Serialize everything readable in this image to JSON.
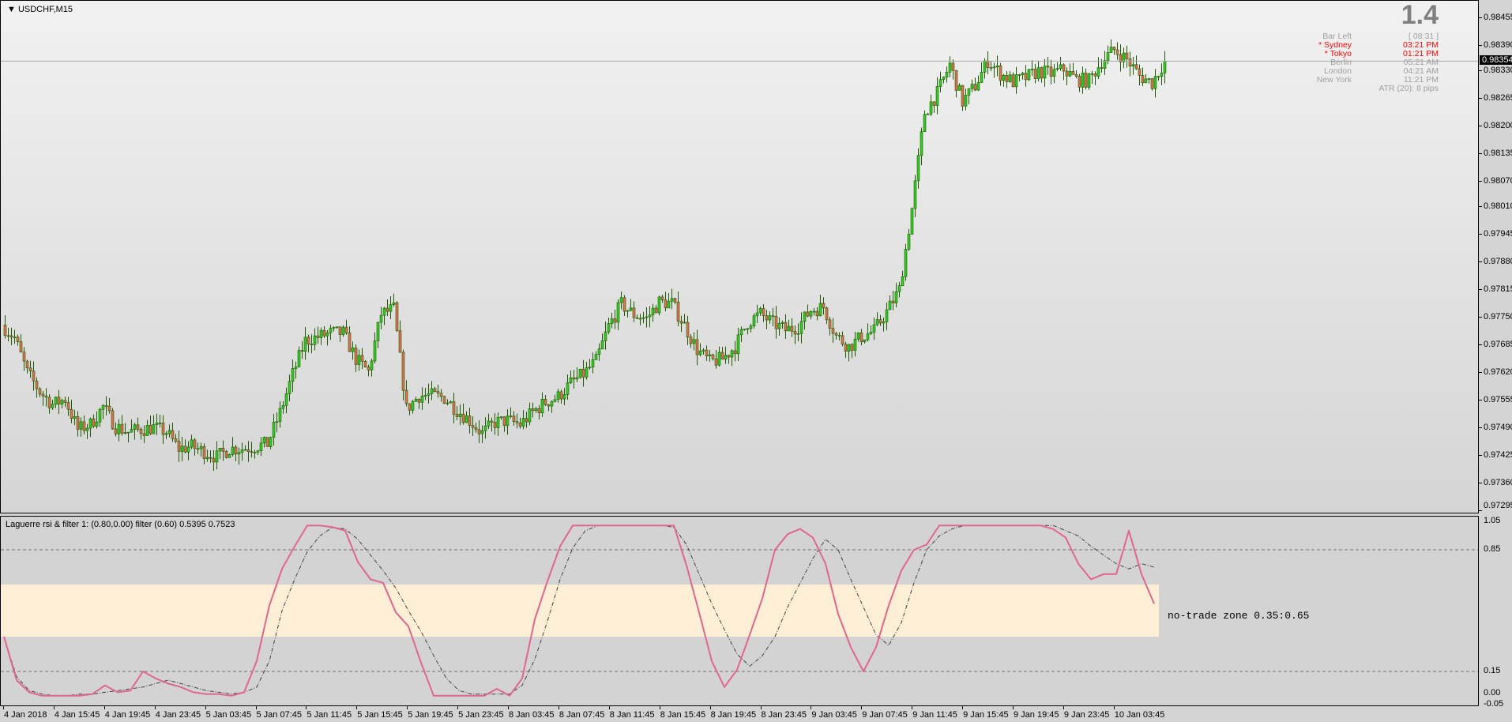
{
  "header": {
    "symbol_label": "USDCHF,M15"
  },
  "info_panel": {
    "spread": "1.4",
    "rows": [
      {
        "label": "Bar Left",
        "value": "[ 08:31 ]",
        "color": "#a0a0a0"
      },
      {
        "label": "* Sydney",
        "value": "03:21 PM",
        "color": "#ff0000"
      },
      {
        "label": "* Tokyo",
        "value": "01:21 PM",
        "color": "#ff0000"
      },
      {
        "label": "Berlin",
        "value": "05:21 AM",
        "color": "#a0a0a0"
      },
      {
        "label": "London",
        "value": "04:21 AM",
        "color": "#a0a0a0"
      },
      {
        "label": "New York",
        "value": "11:21 PM",
        "color": "#a0a0a0"
      }
    ],
    "atr": "ATR (20): 8 pips"
  },
  "indicator": {
    "title": "Laguerre rsi & filter 1: (0.80,0.00) filter (0.60) 0.5395 0.7523",
    "zone_label": "no-trade zone 0.35:0.65",
    "zone_color": "#fdefd6",
    "rsi_color": "#e0668e",
    "filter_color": "#404040"
  },
  "chart_data": [
    {
      "type": "candlestick",
      "symbol": "USDCHF",
      "timeframe": "M15",
      "ylim": [
        0.97295,
        0.98455
      ],
      "y_ticks": [
        "0.98455",
        "0.98390",
        "0.98330",
        "0.98265",
        "0.98200",
        "0.98135",
        "0.98070",
        "0.98010",
        "0.97945",
        "0.97880",
        "0.97815",
        "0.97750",
        "0.97685",
        "0.97620",
        "0.97555",
        "0.97490",
        "0.97425",
        "0.97360",
        "0.97295"
      ],
      "current_price": "0.98354",
      "x_ticks": [
        "4 Jan 2018",
        "4 Jan 15:45",
        "4 Jan 19:45",
        "4 Jan 23:45",
        "5 Jan 03:45",
        "5 Jan 07:45",
        "5 Jan 11:45",
        "5 Jan 15:45",
        "5 Jan 19:45",
        "5 Jan 23:45",
        "8 Jan 03:45",
        "8 Jan 07:45",
        "8 Jan 11:45",
        "8 Jan 15:45",
        "8 Jan 19:45",
        "8 Jan 23:45",
        "9 Jan 03:45",
        "9 Jan 07:45",
        "9 Jan 11:45",
        "9 Jan 15:45",
        "9 Jan 19:45",
        "9 Jan 23:45",
        "10 Jan 03:45"
      ],
      "hourly_close": [
        0.97703,
        0.97621,
        0.97576,
        0.97546,
        0.97558,
        0.97487,
        0.97499,
        0.9754,
        0.97494,
        0.97481,
        0.97487,
        0.97492,
        0.97481,
        0.97442,
        0.97447,
        0.97435,
        0.97422,
        0.97442,
        0.97442,
        0.97447,
        0.97453,
        0.97526,
        0.97617,
        0.97696,
        0.97705,
        0.97714,
        0.97714,
        0.97653,
        0.97623,
        0.97759,
        0.97771,
        0.97535,
        0.97567,
        0.97567,
        0.97562,
        0.97533,
        0.97508,
        0.97478,
        0.97503,
        0.97508,
        0.97499,
        0.97528,
        0.97551,
        0.97564,
        0.97596,
        0.97617,
        0.97648,
        0.9773,
        0.97782,
        0.97757,
        0.97748,
        0.97787,
        0.97784,
        0.97732,
        0.97675,
        0.97646,
        0.97653,
        0.97682,
        0.97739,
        0.97759,
        0.97737,
        0.97721,
        0.9773,
        0.97768,
        0.97775,
        0.97707,
        0.97682,
        0.97705,
        0.97719,
        0.97764,
        0.97816,
        0.98006,
        0.98233,
        0.98278,
        0.98346,
        0.98258,
        0.98296,
        0.98355,
        0.98324,
        0.98305,
        0.98315,
        0.9833,
        0.98324,
        0.98335,
        0.9831,
        0.98308,
        0.98353,
        0.9838,
        0.98358,
        0.98319,
        0.98303,
        0.98354
      ],
      "bull_color": "#33cc22",
      "bear_color": "#e07050",
      "outline_color": "#1e5a00"
    },
    {
      "type": "line",
      "ylim": [
        -0.05,
        1.05
      ],
      "y_ticks": [
        "1.05",
        "0.85",
        "0.15",
        "0.00",
        "-0.05"
      ],
      "levels": [
        0.85,
        0.15
      ],
      "zone": [
        0.35,
        0.65
      ],
      "series": [
        {
          "name": "Laguerre rsi",
          "values": [
            0.35,
            0.1,
            0.03,
            0.01,
            0.01,
            0.01,
            0.01,
            0.02,
            0.07,
            0.03,
            0.04,
            0.15,
            0.11,
            0.08,
            0.06,
            0.03,
            0.02,
            0.02,
            0.01,
            0.03,
            0.21,
            0.53,
            0.74,
            0.87,
            0.99,
            0.99,
            0.98,
            0.96,
            0.78,
            0.68,
            0.66,
            0.49,
            0.41,
            0.2,
            0.01,
            0.01,
            0.01,
            0.01,
            0.01,
            0.05,
            0.01,
            0.11,
            0.45,
            0.67,
            0.87,
            0.99,
            0.99,
            0.99,
            0.99,
            0.99,
            0.99,
            0.99,
            0.99,
            0.99,
            0.76,
            0.49,
            0.21,
            0.06,
            0.16,
            0.36,
            0.57,
            0.85,
            0.94,
            0.97,
            0.92,
            0.77,
            0.48,
            0.29,
            0.15,
            0.29,
            0.53,
            0.73,
            0.85,
            0.88,
            0.99,
            0.99,
            0.99,
            0.99,
            0.99,
            0.99,
            0.99,
            0.99,
            0.99,
            0.97,
            0.92,
            0.77,
            0.68,
            0.71,
            0.71,
            0.96,
            0.71,
            0.54
          ]
        },
        {
          "name": "filter",
          "values": [
            0.35,
            0.12,
            0.04,
            0.02,
            0.01,
            0.01,
            0.02,
            0.02,
            0.03,
            0.04,
            0.05,
            0.06,
            0.08,
            0.1,
            0.08,
            0.06,
            0.04,
            0.03,
            0.02,
            0.03,
            0.06,
            0.21,
            0.5,
            0.68,
            0.84,
            0.93,
            0.98,
            0.97,
            0.91,
            0.82,
            0.73,
            0.63,
            0.5,
            0.38,
            0.24,
            0.11,
            0.04,
            0.02,
            0.02,
            0.02,
            0.02,
            0.07,
            0.22,
            0.44,
            0.68,
            0.86,
            0.96,
            0.99,
            0.99,
            0.99,
            0.99,
            0.99,
            0.99,
            0.98,
            0.88,
            0.71,
            0.54,
            0.39,
            0.25,
            0.18,
            0.24,
            0.35,
            0.52,
            0.66,
            0.8,
            0.91,
            0.85,
            0.68,
            0.52,
            0.36,
            0.3,
            0.43,
            0.66,
            0.85,
            0.93,
            0.97,
            0.99,
            0.99,
            0.99,
            0.99,
            0.99,
            0.99,
            0.99,
            0.99,
            0.96,
            0.93,
            0.87,
            0.82,
            0.77,
            0.74,
            0.77,
            0.75
          ]
        }
      ]
    }
  ]
}
